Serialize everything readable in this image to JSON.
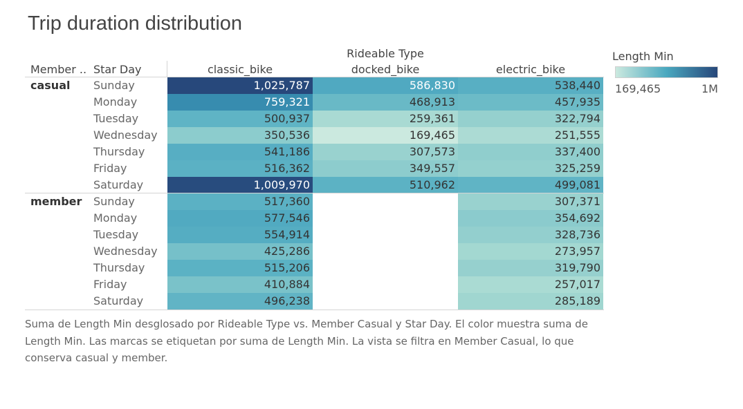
{
  "title": "Trip duration distribution",
  "headers": {
    "column_group": "Rideable Type",
    "row_dim1": "Member ..",
    "row_dim2": "Star Day"
  },
  "legend": {
    "title": "Length Min",
    "min_label": "169,465",
    "max_label": "1M",
    "color_low": "#cbe9df",
    "color_mid": "#4aa8bf",
    "color_high": "#27477a"
  },
  "caption": "Suma de Length Min desglosado por Rideable Type vs. Member Casual y Star Day.  El color muestra suma de Length Min.  Las marcas se etiquetan por suma de Length Min. La vista se filtra en Member Casual, lo que conserva casual y member.",
  "chart_data": {
    "type": "heatmap",
    "title": "Trip duration distribution",
    "columns": [
      "classic_bike",
      "docked_bike",
      "electric_bike"
    ],
    "groups": [
      {
        "member": "casual",
        "days": [
          "Sunday",
          "Monday",
          "Tuesday",
          "Wednesday",
          "Thursday",
          "Friday",
          "Saturday"
        ],
        "values": [
          [
            "1,025,787",
            "586,830",
            "538,440"
          ],
          [
            "759,321",
            "468,913",
            "457,935"
          ],
          [
            "500,937",
            "259,361",
            "322,794"
          ],
          [
            "350,536",
            "169,465",
            "251,555"
          ],
          [
            "541,186",
            "307,573",
            "337,400"
          ],
          [
            "516,362",
            "349,557",
            "325,259"
          ],
          [
            "1,009,970",
            "510,962",
            "499,081"
          ]
        ]
      },
      {
        "member": "member",
        "days": [
          "Sunday",
          "Monday",
          "Tuesday",
          "Wednesday",
          "Thursday",
          "Friday",
          "Saturday"
        ],
        "values": [
          [
            "517,360",
            null,
            "307,371"
          ],
          [
            "577,546",
            null,
            "354,692"
          ],
          [
            "554,914",
            null,
            "328,736"
          ],
          [
            "425,286",
            null,
            "273,957"
          ],
          [
            "515,206",
            null,
            "319,790"
          ],
          [
            "410,884",
            null,
            "257,017"
          ],
          [
            "496,238",
            null,
            "285,189"
          ]
        ]
      }
    ],
    "color_range": [
      169465,
      1025787
    ]
  }
}
